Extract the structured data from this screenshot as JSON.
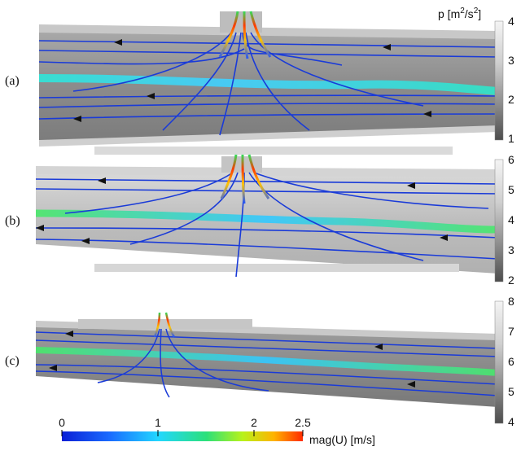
{
  "panels": [
    {
      "label": "(a)",
      "pressure_ticks": [
        "4",
        "3",
        "2",
        "1"
      ]
    },
    {
      "label": "(b)",
      "pressure_ticks": [
        "6",
        "5",
        "4",
        "3",
        "2"
      ]
    },
    {
      "label": "(c)",
      "pressure_ticks": [
        "8",
        "7",
        "6",
        "5",
        "4"
      ]
    }
  ],
  "pressure_label": {
    "prefix": "p [m",
    "sup1": "2",
    "mid": "/s",
    "sup2": "2",
    "suffix": "]"
  },
  "velocity": {
    "ticks": [
      "0",
      "1",
      "2",
      "2.5"
    ],
    "label": "mag(U) [m/s]"
  },
  "colors": {
    "velocity_scale": [
      "#0a1fd6",
      "#1a6cff",
      "#22d7ff",
      "#2be07a",
      "#b8f21a",
      "#ffb300",
      "#ff2a00"
    ],
    "pressure_scale": [
      "#f2f2f2",
      "#bdbdbd",
      "#7a7a7a",
      "#4a4a4a"
    ],
    "streamline": "#1a3bd8",
    "jet": "#2fe6d0",
    "jet_green": "#47e66b"
  }
}
